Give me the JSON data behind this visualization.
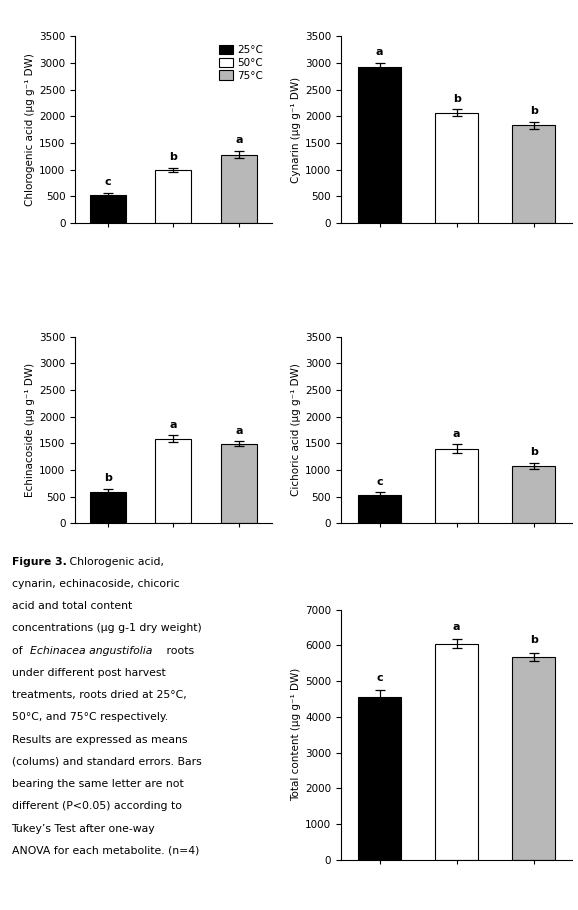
{
  "chlorogenic_acid": {
    "values": [
      520,
      1000,
      1280
    ],
    "errors": [
      50,
      40,
      70
    ],
    "letters": [
      "c",
      "b",
      "a"
    ],
    "ylabel_full": "Chlorogenic acid (μg g⁻¹ DW)",
    "ylim": [
      0,
      3500
    ],
    "yticks": [
      0,
      500,
      1000,
      1500,
      2000,
      2500,
      3000,
      3500
    ]
  },
  "cynarin": {
    "values": [
      2920,
      2070,
      1830
    ],
    "errors": [
      80,
      60,
      70
    ],
    "letters": [
      "a",
      "b",
      "b"
    ],
    "ylabel_full": "Cynarin (μg g⁻¹ DW)",
    "ylim": [
      0,
      3500
    ],
    "yticks": [
      0,
      500,
      1000,
      1500,
      2000,
      2500,
      3000,
      3500
    ]
  },
  "echinacoside": {
    "values": [
      590,
      1590,
      1490
    ],
    "errors": [
      55,
      60,
      50
    ],
    "letters": [
      "b",
      "a",
      "a"
    ],
    "ylabel_full": "Echinacoside (μg g⁻¹ DW)",
    "ylim": [
      0,
      3500
    ],
    "yticks": [
      0,
      500,
      1000,
      1500,
      2000,
      2500,
      3000,
      3500
    ]
  },
  "cichoric_acid": {
    "values": [
      530,
      1400,
      1070
    ],
    "errors": [
      50,
      80,
      60
    ],
    "letters": [
      "c",
      "a",
      "b"
    ],
    "ylabel_full": "Cichoric acid (μg g⁻¹ DW)",
    "ylim": [
      0,
      3500
    ],
    "yticks": [
      0,
      500,
      1000,
      1500,
      2000,
      2500,
      3000,
      3500
    ]
  },
  "total_content": {
    "values": [
      4550,
      6050,
      5680
    ],
    "errors": [
      200,
      120,
      110
    ],
    "letters": [
      "c",
      "a",
      "b"
    ],
    "ylabel_full": "Total content (μg g⁻¹ DW)",
    "ylim": [
      0,
      7000
    ],
    "yticks": [
      0,
      1000,
      2000,
      3000,
      4000,
      5000,
      6000,
      7000
    ]
  },
  "bar_colors": [
    "#000000",
    "#ffffff",
    "#b8b8b8"
  ],
  "bar_edgecolor": "black",
  "bar_width": 0.55,
  "legend_labels": [
    "25°C",
    "50°C",
    "75°C"
  ],
  "caption_bold": "Figure 3.",
  "caption_rest": " Chlorogenic acid,\ncynarin, echinacoside, chicoric\nacid and total content\nconcentrations (μg g-1 dry weight)\nof ",
  "caption_italic": "Echinacea angustifolia",
  "caption_end": " roots\nunder different post harvest\ntreatments, roots dried at 25°C,\n50°C, and 75°C respectively.\nResults are expressed as means\n(colums) and standard errors. Bars\nbearing the same letter are not\ndifferent (P<0.05) according to\nTukey’s Test after one-way\nANOVA for each metabolite. (n=4)"
}
